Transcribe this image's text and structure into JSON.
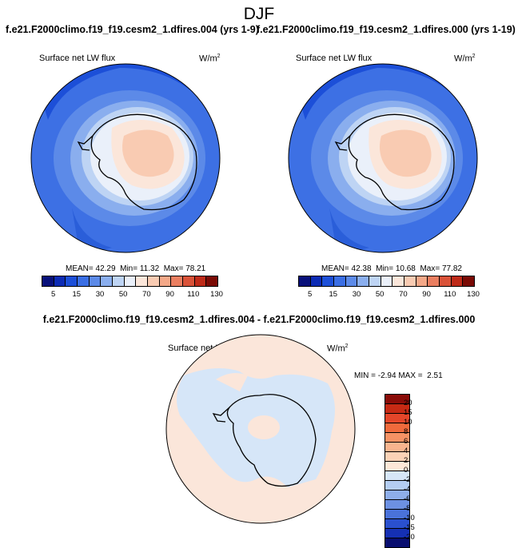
{
  "figure": {
    "season": "DJF"
  },
  "panels": [
    {
      "title": "f.e21.F2000climo.f19_f19.cesm2_1.dfires.004 (yrs 1-9)",
      "variable": "Surface net LW flux",
      "units_base": "W/m",
      "units_exp": "2",
      "mean_label": "MEAN=",
      "mean": "42.29",
      "min_label": "Min=",
      "min": "11.32",
      "max_label": "Max=",
      "max": "78.21"
    },
    {
      "title": "f.e21.F2000climo.f19_f19.cesm2_1.dfires.000 (yrs 1-19)",
      "variable": "Surface net LW flux",
      "units_base": "W/m",
      "units_exp": "2",
      "mean_label": "MEAN=",
      "mean": "42.38",
      "min_label": "Min=",
      "min": "10.68",
      "max_label": "Max=",
      "max": "77.82"
    }
  ],
  "difference": {
    "title": "f.e21.F2000climo.f19_f19.cesm2_1.dfires.004 - f.e21.F2000climo.f19_f19.cesm2_1.dfires.000",
    "variable": "Surface net LW flux",
    "units_base": "W/m",
    "units_exp": "2",
    "min_label": "MIN =",
    "min": "-2.94",
    "max_label": "MAX =",
    "max": "2.51"
  },
  "colorbars": {
    "absolute": {
      "colors": [
        "#08107a",
        "#0c2bb4",
        "#1c4fd8",
        "#3a6ee4",
        "#5c8ae8",
        "#8aaeee",
        "#bed4f4",
        "#eaf0fa",
        "#fbe6da",
        "#f9cbb2",
        "#f4a888",
        "#ea7e60",
        "#d95238",
        "#be2a18",
        "#7a0a04"
      ],
      "tick_labels": [
        "5",
        "15",
        "30",
        "50",
        "70",
        "90",
        "110",
        "130"
      ]
    },
    "difference": {
      "colors": [
        "#8a0c08",
        "#c62a14",
        "#e4462a",
        "#f06a3c",
        "#f69264",
        "#f8b48e",
        "#fbd2b6",
        "#fde8d8",
        "#d6e6f8",
        "#b4cdf2",
        "#8eaeea",
        "#6c90e2",
        "#4a72da",
        "#2a50ce",
        "#1530b4",
        "#080e70"
      ],
      "tick_labels": [
        "20",
        "15",
        "10",
        "8",
        "6",
        "4",
        "2",
        "0",
        "-2",
        "-4",
        "-6",
        "-8",
        "-10",
        "-15",
        "-20"
      ]
    }
  }
}
